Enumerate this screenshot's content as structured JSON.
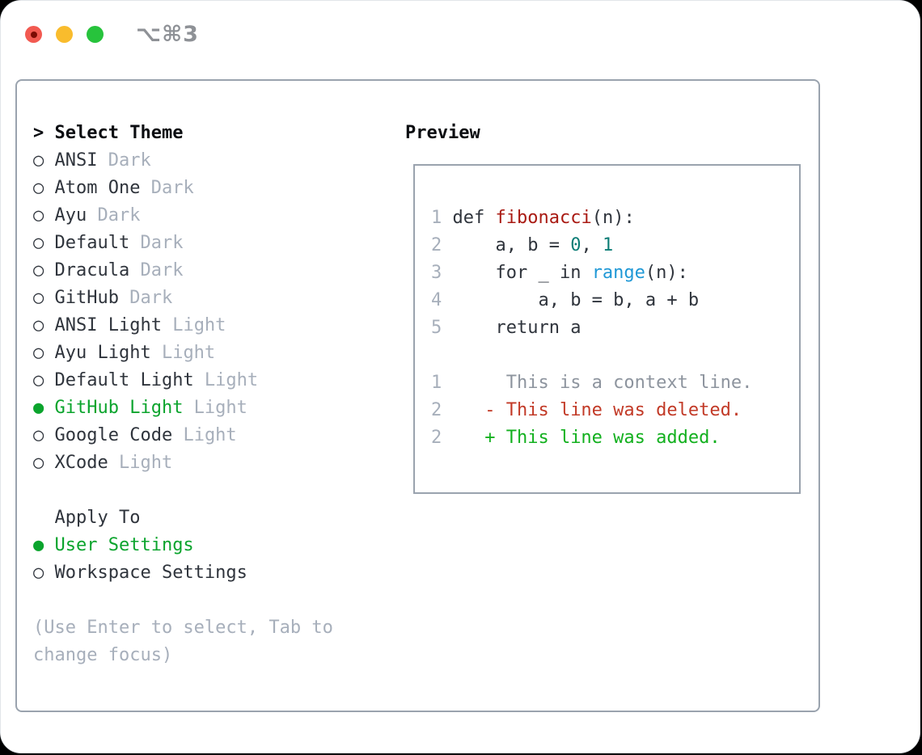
{
  "palette": {
    "traffic_red": "#f25a51",
    "traffic_red_dot": "#7c0c04",
    "traffic_yellow": "#f9bc2d",
    "traffic_green": "#27c33c",
    "title_gray": "#8e9196",
    "border_gray": "#9aa3ae",
    "header_black": "#0b0d11",
    "text_dark": "#2f343c",
    "muted": "#a7afbb",
    "context_gray": "#8d949e",
    "accent_green": "#0ba42d",
    "added_green": "#12b01e",
    "deleted_red": "#c23a27",
    "func_red": "#a91a13",
    "number_teal": "#0c7d76",
    "builtin_blue": "#1f98d6"
  },
  "window": {
    "title": "⌥⌘3",
    "traffic_lights": [
      "close",
      "minimize",
      "zoom"
    ]
  },
  "theme_picker": {
    "header_prefix": ">",
    "header": "Select Theme",
    "bullet_selected": "●",
    "bullet_unselected": "○",
    "items": [
      {
        "name": "ANSI",
        "variant": "Dark",
        "selected": false
      },
      {
        "name": "Atom One",
        "variant": "Dark",
        "selected": false
      },
      {
        "name": "Ayu",
        "variant": "Dark",
        "selected": false
      },
      {
        "name": "Default",
        "variant": "Dark",
        "selected": false
      },
      {
        "name": "Dracula",
        "variant": "Dark",
        "selected": false
      },
      {
        "name": "GitHub",
        "variant": "Dark",
        "selected": false
      },
      {
        "name": "ANSI Light",
        "variant": "Light",
        "selected": false
      },
      {
        "name": "Ayu Light",
        "variant": "Light",
        "selected": false
      },
      {
        "name": "Default Light",
        "variant": "Light",
        "selected": false
      },
      {
        "name": "GitHub Light",
        "variant": "Light",
        "selected": true
      },
      {
        "name": "Google Code",
        "variant": "Light",
        "selected": false
      },
      {
        "name": "XCode",
        "variant": "Light",
        "selected": false
      }
    ]
  },
  "apply_to": {
    "header": "Apply To",
    "items": [
      {
        "name": "User Settings",
        "selected": true
      },
      {
        "name": "Workspace Settings",
        "selected": false
      }
    ]
  },
  "footer_hint": "(Use Enter to select, Tab to change focus)",
  "preview": {
    "label": "Preview",
    "lines": [
      [
        {
          "t": "1",
          "c": "num"
        },
        {
          "t": " def ",
          "c": "plain"
        },
        {
          "t": "fibonacci",
          "c": "func"
        },
        {
          "t": "(n):",
          "c": "plain"
        }
      ],
      [
        {
          "t": "2",
          "c": "num"
        },
        {
          "t": "     a, b = ",
          "c": "plain"
        },
        {
          "t": "0",
          "c": "number"
        },
        {
          "t": ", ",
          "c": "plain"
        },
        {
          "t": "1",
          "c": "number"
        }
      ],
      [
        {
          "t": "3",
          "c": "num"
        },
        {
          "t": "     for _ in ",
          "c": "plain"
        },
        {
          "t": "range",
          "c": "builtin"
        },
        {
          "t": "(n):",
          "c": "plain"
        }
      ],
      [
        {
          "t": "4",
          "c": "num"
        },
        {
          "t": "         a, b = b, a + b",
          "c": "plain"
        }
      ],
      [
        {
          "t": "5",
          "c": "num"
        },
        {
          "t": "     return a",
          "c": "plain"
        }
      ],
      [],
      [
        {
          "t": "1",
          "c": "num"
        },
        {
          "t": "      This is a context line.",
          "c": "context"
        }
      ],
      [
        {
          "t": "2",
          "c": "num"
        },
        {
          "t": "    - This line was deleted.",
          "c": "deleted"
        }
      ],
      [
        {
          "t": "2",
          "c": "num"
        },
        {
          "t": "    + This line was added.",
          "c": "added"
        }
      ]
    ]
  }
}
